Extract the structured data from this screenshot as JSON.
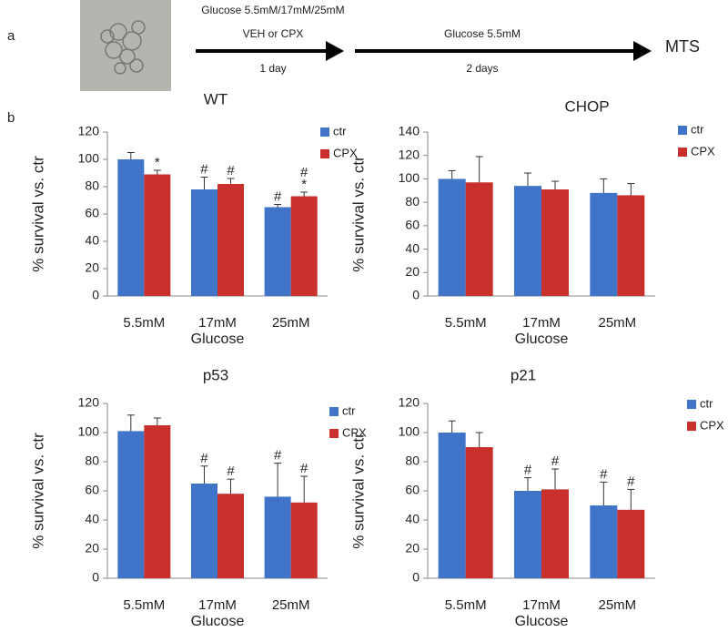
{
  "schematic": {
    "label": "a",
    "steps": [
      {
        "above": [
          "Glucose 5.5mM/17mM/25mM",
          "VEH or CPX"
        ],
        "below": "1 day"
      },
      {
        "above": [
          "Glucose 5.5mM"
        ],
        "below": "2 days"
      }
    ],
    "end": "MTS"
  },
  "panel_b_label": "b",
  "chart_data": [
    {
      "type": "bar",
      "title": "WT",
      "x_label": "Glucose",
      "y_label": "% survival vs. ctr",
      "categories": [
        "5.5mM",
        "17mM",
        "25mM"
      ],
      "ylim": [
        0,
        120
      ],
      "yticks": [
        0,
        20,
        40,
        60,
        80,
        100,
        120
      ],
      "legend": "upper right",
      "series": [
        {
          "name": "ctr",
          "color": "#3f74c9",
          "values": [
            100,
            78,
            65
          ],
          "errors": [
            5,
            9,
            2
          ],
          "annotations": [
            null,
            [
              "#"
            ],
            [
              "#"
            ]
          ]
        },
        {
          "name": "CPX",
          "color": "#c9302c",
          "values": [
            89,
            82,
            73
          ],
          "errors": [
            3,
            4,
            3
          ],
          "annotations": [
            [
              "*"
            ],
            [
              "#"
            ],
            [
              "#",
              "*"
            ]
          ]
        }
      ]
    },
    {
      "type": "bar",
      "title": "CHOP",
      "x_label": "Glucose",
      "y_label": "% survival vs. ctr",
      "categories": [
        "5.5mM",
        "17mM",
        "25mM"
      ],
      "ylim": [
        0,
        140
      ],
      "yticks": [
        0,
        20,
        40,
        60,
        80,
        100,
        120,
        140
      ],
      "legend": "upper right",
      "series": [
        {
          "name": "ctr",
          "color": "#3f74c9",
          "values": [
            100,
            94,
            88
          ],
          "errors": [
            7,
            11,
            12
          ],
          "annotations": [
            null,
            null,
            null
          ]
        },
        {
          "name": "CPX",
          "color": "#c9302c",
          "values": [
            97,
            91,
            86
          ],
          "errors": [
            22,
            7,
            10
          ],
          "annotations": [
            null,
            null,
            null
          ]
        }
      ]
    },
    {
      "type": "bar",
      "title": "p53",
      "x_label": "Glucose",
      "y_label": "% survival vs. ctr",
      "categories": [
        "5.5mM",
        "17mM",
        "25mM"
      ],
      "ylim": [
        0,
        120
      ],
      "yticks": [
        0,
        20,
        40,
        60,
        80,
        100,
        120
      ],
      "legend": "upper right",
      "series": [
        {
          "name": "ctr",
          "color": "#3f74c9",
          "values": [
            101,
            65,
            56
          ],
          "errors": [
            11,
            12,
            23
          ],
          "annotations": [
            null,
            [
              "#"
            ],
            [
              "#"
            ]
          ]
        },
        {
          "name": "CPX",
          "color": "#c9302c",
          "values": [
            105,
            58,
            52
          ],
          "errors": [
            5,
            10,
            18
          ],
          "annotations": [
            null,
            [
              "#"
            ],
            [
              "#"
            ]
          ]
        }
      ]
    },
    {
      "type": "bar",
      "title": "p21",
      "x_label": "Glucose",
      "y_label": "% survival vs. ctr",
      "categories": [
        "5.5mM",
        "17mM",
        "25mM"
      ],
      "ylim": [
        0,
        120
      ],
      "yticks": [
        0,
        20,
        40,
        60,
        80,
        100,
        120
      ],
      "legend": "upper right",
      "series": [
        {
          "name": "ctr",
          "color": "#3f74c9",
          "values": [
            100,
            60,
            50
          ],
          "errors": [
            8,
            9,
            16
          ],
          "annotations": [
            null,
            [
              "#"
            ],
            [
              "#"
            ]
          ]
        },
        {
          "name": "CPX",
          "color": "#c9302c",
          "values": [
            90,
            61,
            47
          ],
          "errors": [
            10,
            14,
            14
          ],
          "annotations": [
            null,
            [
              "#"
            ],
            [
              "#"
            ]
          ]
        }
      ]
    }
  ]
}
